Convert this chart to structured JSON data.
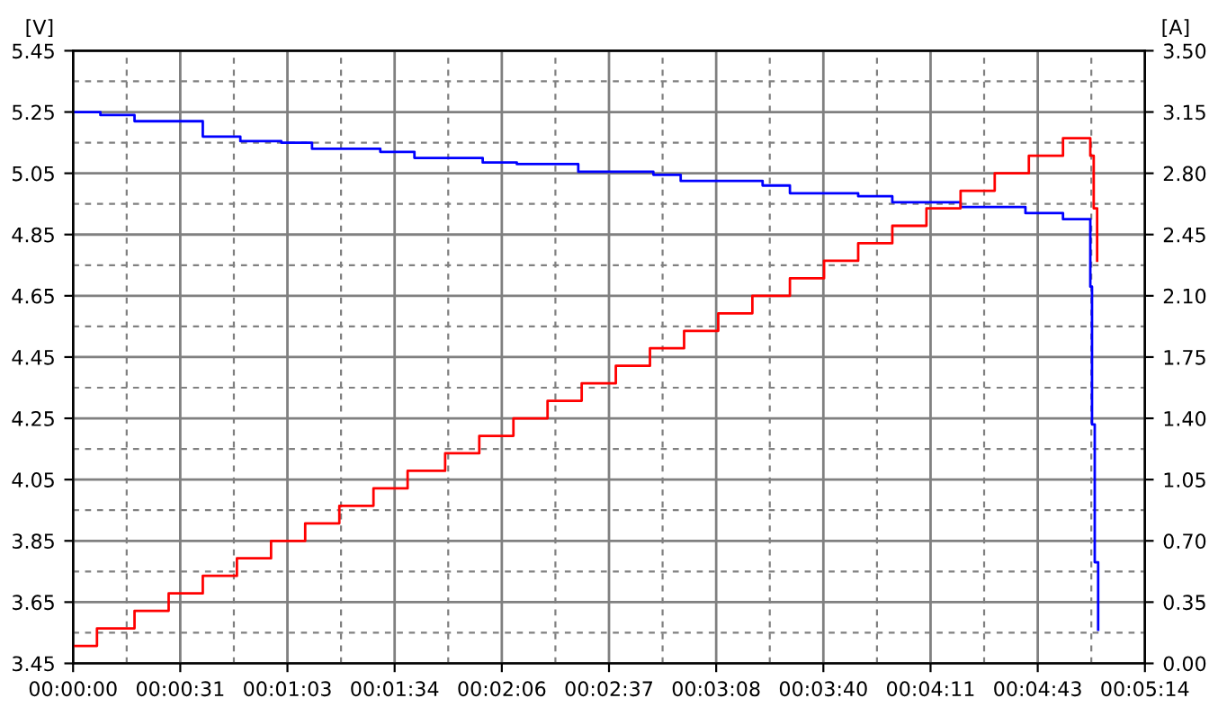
{
  "chart_data": {
    "type": "step",
    "ylabel": "[V]",
    "y2label": "[A]",
    "xlim": [
      0,
      314
    ],
    "xticks": [
      {
        "value": 0,
        "label": "00:00:00"
      },
      {
        "value": 31.4,
        "label": "00:00:31"
      },
      {
        "value": 62.8,
        "label": "00:01:03"
      },
      {
        "value": 94.2,
        "label": "00:01:34"
      },
      {
        "value": 125.6,
        "label": "00:02:06"
      },
      {
        "value": 157,
        "label": "00:02:37"
      },
      {
        "value": 188.4,
        "label": "00:03:08"
      },
      {
        "value": 219.8,
        "label": "00:03:40"
      },
      {
        "value": 251.2,
        "label": "00:04:11"
      },
      {
        "value": 282.6,
        "label": "00:04:43"
      },
      {
        "value": 314,
        "label": "00:05:14"
      }
    ],
    "ylim": [
      3.45,
      5.45
    ],
    "yticks": [
      3.45,
      3.65,
      3.85,
      4.05,
      4.25,
      4.45,
      4.65,
      4.85,
      5.05,
      5.25,
      5.45
    ],
    "y2lim": [
      0,
      3.5
    ],
    "y2ticks": [
      {
        "value": 0,
        "label": "0.00"
      },
      {
        "value": 0.35,
        "label": "0.35"
      },
      {
        "value": 0.7,
        "label": "0.70"
      },
      {
        "value": 1.05,
        "label": "1.05"
      },
      {
        "value": 1.4,
        "label": "1.40"
      },
      {
        "value": 1.75,
        "label": "1.75"
      },
      {
        "value": 2.1,
        "label": "2.10"
      },
      {
        "value": 2.45,
        "label": "2.45"
      },
      {
        "value": 2.8,
        "label": "2.80"
      },
      {
        "value": 3.15,
        "label": "3.15"
      },
      {
        "value": 3.5,
        "label": "3.50"
      }
    ],
    "grid": true,
    "series": [
      {
        "color": "#0000ff",
        "x": [
          0,
          8,
          18,
          38,
          49,
          61,
          70,
          90,
          100,
          120,
          130,
          148,
          170,
          178,
          202,
          210,
          230,
          240,
          260,
          279,
          290,
          298,
          298.5,
          299.3,
          300.3
        ],
        "values": [
          5.25,
          5.24,
          5.22,
          5.17,
          5.155,
          5.15,
          5.13,
          5.12,
          5.1,
          5.085,
          5.08,
          5.055,
          5.045,
          5.025,
          5.01,
          4.985,
          4.975,
          4.955,
          4.94,
          4.92,
          4.9,
          4.68,
          4.23,
          3.78,
          3.56
        ]
      },
      {
        "color": "#ff0000",
        "axis": "y2",
        "x": [
          0,
          7,
          18,
          28,
          38,
          48,
          58,
          68,
          78,
          88,
          98,
          109,
          119,
          129,
          139,
          149,
          159,
          169,
          179,
          189,
          199,
          210,
          220,
          230,
          240,
          250,
          260,
          270,
          280,
          290,
          298,
          299,
          300
        ],
        "values": [
          0.1,
          0.2,
          0.3,
          0.4,
          0.5,
          0.6,
          0.7,
          0.8,
          0.9,
          1.0,
          1.1,
          1.2,
          1.3,
          1.4,
          1.5,
          1.6,
          1.7,
          1.8,
          1.9,
          2.0,
          2.1,
          2.2,
          2.3,
          2.4,
          2.5,
          2.6,
          2.7,
          2.8,
          2.9,
          3.0,
          2.9,
          2.6,
          2.3
        ]
      }
    ]
  }
}
